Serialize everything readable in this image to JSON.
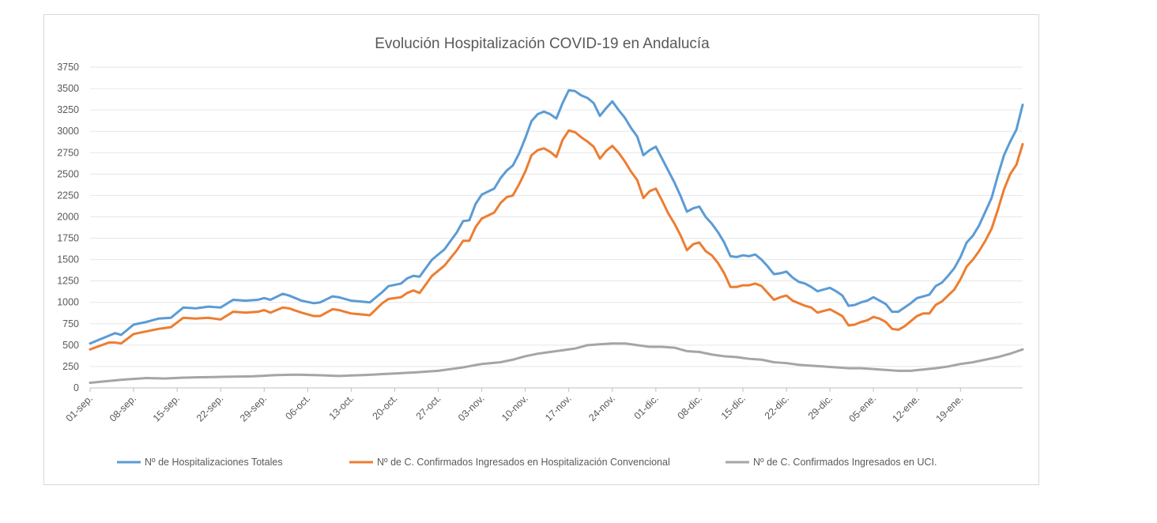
{
  "chart_data": {
    "type": "line",
    "title": "Evolución Hospitalización COVID-19 en Andalucía",
    "xlabel": "",
    "ylabel": "",
    "ylim": [
      0,
      3750
    ],
    "yticks": [
      0,
      250,
      500,
      750,
      1000,
      1250,
      1500,
      1750,
      2000,
      2250,
      2500,
      2750,
      3000,
      3250,
      3500,
      3750
    ],
    "x_tick_labels": [
      "01-sep.",
      "08-sep.",
      "15-sep.",
      "22-sep.",
      "29-sep.",
      "06-oct.",
      "13-oct.",
      "20-oct.",
      "27-oct.",
      "03-nov.",
      "10-nov.",
      "17-nov.",
      "24-nov.",
      "01-dic.",
      "08-dic.",
      "15-dic.",
      "22-dic.",
      "29-dic.",
      "05-ene.",
      "12-ene.",
      "19-ene."
    ],
    "legend_position": "bottom",
    "grid": true,
    "series": [
      {
        "name": "Nº de Hospitalizaciones Totales",
        "color": "#5b9bd5",
        "anchors": [
          [
            0,
            520
          ],
          [
            3,
            610
          ],
          [
            4,
            640
          ],
          [
            5,
            620
          ],
          [
            7,
            740
          ],
          [
            9,
            770
          ],
          [
            11,
            810
          ],
          [
            13,
            820
          ],
          [
            15,
            940
          ],
          [
            17,
            930
          ],
          [
            19,
            950
          ],
          [
            21,
            940
          ],
          [
            23,
            1030
          ],
          [
            25,
            1020
          ],
          [
            27,
            1030
          ],
          [
            28,
            1050
          ],
          [
            29,
            1030
          ],
          [
            31,
            1100
          ],
          [
            32,
            1080
          ],
          [
            34,
            1020
          ],
          [
            36,
            990
          ],
          [
            37,
            1000
          ],
          [
            39,
            1070
          ],
          [
            40,
            1060
          ],
          [
            42,
            1020
          ],
          [
            45,
            1000
          ],
          [
            47,
            1120
          ],
          [
            48,
            1190
          ],
          [
            50,
            1220
          ],
          [
            51,
            1280
          ],
          [
            52,
            1310
          ],
          [
            53,
            1300
          ],
          [
            55,
            1500
          ],
          [
            57,
            1620
          ],
          [
            59,
            1820
          ],
          [
            60,
            1950
          ],
          [
            61,
            1960
          ],
          [
            62,
            2150
          ],
          [
            63,
            2260
          ],
          [
            65,
            2330
          ],
          [
            66,
            2450
          ],
          [
            67,
            2540
          ],
          [
            68,
            2600
          ],
          [
            69,
            2740
          ],
          [
            70,
            2920
          ],
          [
            71,
            3120
          ],
          [
            72,
            3200
          ],
          [
            73,
            3230
          ],
          [
            74,
            3200
          ],
          [
            75,
            3150
          ],
          [
            76,
            3330
          ],
          [
            77,
            3480
          ],
          [
            78,
            3470
          ],
          [
            79,
            3420
          ],
          [
            80,
            3390
          ],
          [
            81,
            3330
          ],
          [
            82,
            3180
          ],
          [
            83,
            3270
          ],
          [
            84,
            3350
          ],
          [
            85,
            3250
          ],
          [
            86,
            3160
          ],
          [
            87,
            3040
          ],
          [
            88,
            2940
          ],
          [
            89,
            2720
          ],
          [
            90,
            2780
          ],
          [
            91,
            2820
          ],
          [
            92,
            2680
          ],
          [
            93,
            2540
          ],
          [
            94,
            2400
          ],
          [
            95,
            2240
          ],
          [
            96,
            2060
          ],
          [
            97,
            2100
          ],
          [
            98,
            2120
          ],
          [
            99,
            2000
          ],
          [
            100,
            1920
          ],
          [
            101,
            1820
          ],
          [
            102,
            1700
          ],
          [
            103,
            1540
          ],
          [
            104,
            1530
          ],
          [
            105,
            1550
          ],
          [
            106,
            1540
          ],
          [
            107,
            1560
          ],
          [
            108,
            1500
          ],
          [
            109,
            1420
          ],
          [
            110,
            1330
          ],
          [
            111,
            1340
          ],
          [
            112,
            1360
          ],
          [
            113,
            1290
          ],
          [
            114,
            1240
          ],
          [
            115,
            1220
          ],
          [
            116,
            1180
          ],
          [
            117,
            1130
          ],
          [
            118,
            1150
          ],
          [
            119,
            1170
          ],
          [
            120,
            1130
          ],
          [
            121,
            1080
          ],
          [
            122,
            960
          ],
          [
            123,
            970
          ],
          [
            124,
            1000
          ],
          [
            125,
            1020
          ],
          [
            126,
            1060
          ],
          [
            127,
            1020
          ],
          [
            128,
            980
          ],
          [
            129,
            890
          ],
          [
            130,
            890
          ],
          [
            131,
            940
          ],
          [
            132,
            990
          ],
          [
            133,
            1050
          ],
          [
            134,
            1070
          ],
          [
            135,
            1090
          ],
          [
            136,
            1190
          ],
          [
            137,
            1230
          ],
          [
            138,
            1310
          ],
          [
            139,
            1400
          ],
          [
            140,
            1530
          ],
          [
            141,
            1700
          ],
          [
            142,
            1780
          ],
          [
            143,
            1900
          ],
          [
            144,
            2060
          ],
          [
            145,
            2220
          ],
          [
            146,
            2480
          ],
          [
            147,
            2720
          ],
          [
            148,
            2880
          ],
          [
            149,
            3020
          ],
          [
            150,
            3310
          ]
        ]
      },
      {
        "name": "Nº de C. Confirmados Ingresados en Hospitalización Convencional",
        "color": "#ed7d31",
        "anchors": [
          [
            0,
            450
          ],
          [
            3,
            530
          ],
          [
            4,
            530
          ],
          [
            5,
            520
          ],
          [
            7,
            630
          ],
          [
            9,
            660
          ],
          [
            11,
            690
          ],
          [
            13,
            710
          ],
          [
            15,
            820
          ],
          [
            17,
            810
          ],
          [
            19,
            820
          ],
          [
            21,
            800
          ],
          [
            23,
            890
          ],
          [
            25,
            880
          ],
          [
            27,
            890
          ],
          [
            28,
            910
          ],
          [
            29,
            880
          ],
          [
            31,
            940
          ],
          [
            32,
            930
          ],
          [
            34,
            880
          ],
          [
            36,
            840
          ],
          [
            37,
            840
          ],
          [
            39,
            920
          ],
          [
            40,
            910
          ],
          [
            42,
            870
          ],
          [
            45,
            850
          ],
          [
            47,
            990
          ],
          [
            48,
            1040
          ],
          [
            50,
            1060
          ],
          [
            51,
            1110
          ],
          [
            52,
            1140
          ],
          [
            53,
            1110
          ],
          [
            55,
            1310
          ],
          [
            57,
            1430
          ],
          [
            59,
            1610
          ],
          [
            60,
            1720
          ],
          [
            61,
            1720
          ],
          [
            62,
            1880
          ],
          [
            63,
            1980
          ],
          [
            65,
            2050
          ],
          [
            66,
            2160
          ],
          [
            67,
            2230
          ],
          [
            68,
            2250
          ],
          [
            69,
            2380
          ],
          [
            70,
            2530
          ],
          [
            71,
            2720
          ],
          [
            72,
            2780
          ],
          [
            73,
            2800
          ],
          [
            74,
            2760
          ],
          [
            75,
            2700
          ],
          [
            76,
            2900
          ],
          [
            77,
            3010
          ],
          [
            78,
            2990
          ],
          [
            79,
            2930
          ],
          [
            80,
            2880
          ],
          [
            81,
            2820
          ],
          [
            82,
            2680
          ],
          [
            83,
            2770
          ],
          [
            84,
            2830
          ],
          [
            85,
            2750
          ],
          [
            86,
            2650
          ],
          [
            87,
            2530
          ],
          [
            88,
            2430
          ],
          [
            89,
            2220
          ],
          [
            90,
            2300
          ],
          [
            91,
            2330
          ],
          [
            92,
            2190
          ],
          [
            93,
            2040
          ],
          [
            94,
            1920
          ],
          [
            95,
            1780
          ],
          [
            96,
            1610
          ],
          [
            97,
            1680
          ],
          [
            98,
            1700
          ],
          [
            99,
            1600
          ],
          [
            100,
            1550
          ],
          [
            101,
            1460
          ],
          [
            102,
            1340
          ],
          [
            103,
            1180
          ],
          [
            104,
            1180
          ],
          [
            105,
            1200
          ],
          [
            106,
            1200
          ],
          [
            107,
            1220
          ],
          [
            108,
            1190
          ],
          [
            109,
            1110
          ],
          [
            110,
            1030
          ],
          [
            111,
            1060
          ],
          [
            112,
            1080
          ],
          [
            113,
            1020
          ],
          [
            114,
            990
          ],
          [
            115,
            960
          ],
          [
            116,
            940
          ],
          [
            117,
            880
          ],
          [
            118,
            900
          ],
          [
            119,
            920
          ],
          [
            120,
            880
          ],
          [
            121,
            840
          ],
          [
            122,
            730
          ],
          [
            123,
            740
          ],
          [
            124,
            770
          ],
          [
            125,
            790
          ],
          [
            126,
            830
          ],
          [
            127,
            810
          ],
          [
            128,
            770
          ],
          [
            129,
            690
          ],
          [
            130,
            680
          ],
          [
            131,
            720
          ],
          [
            132,
            780
          ],
          [
            133,
            840
          ],
          [
            134,
            870
          ],
          [
            135,
            870
          ],
          [
            136,
            970
          ],
          [
            137,
            1010
          ],
          [
            138,
            1080
          ],
          [
            139,
            1150
          ],
          [
            140,
            1270
          ],
          [
            141,
            1420
          ],
          [
            142,
            1500
          ],
          [
            143,
            1600
          ],
          [
            144,
            1720
          ],
          [
            145,
            1860
          ],
          [
            146,
            2080
          ],
          [
            147,
            2320
          ],
          [
            148,
            2500
          ],
          [
            149,
            2610
          ],
          [
            150,
            2850
          ]
        ]
      },
      {
        "name": "Nº de C. Confirmados Ingresados en UCI.",
        "color": "#a5a5a5",
        "anchors": [
          [
            0,
            60
          ],
          [
            5,
            95
          ],
          [
            9,
            115
          ],
          [
            12,
            110
          ],
          [
            15,
            120
          ],
          [
            18,
            125
          ],
          [
            22,
            130
          ],
          [
            26,
            135
          ],
          [
            30,
            150
          ],
          [
            33,
            155
          ],
          [
            36,
            150
          ],
          [
            40,
            140
          ],
          [
            44,
            150
          ],
          [
            48,
            165
          ],
          [
            52,
            180
          ],
          [
            56,
            200
          ],
          [
            60,
            240
          ],
          [
            63,
            280
          ],
          [
            66,
            300
          ],
          [
            68,
            330
          ],
          [
            70,
            370
          ],
          [
            72,
            400
          ],
          [
            74,
            420
          ],
          [
            76,
            440
          ],
          [
            78,
            460
          ],
          [
            80,
            500
          ],
          [
            82,
            510
          ],
          [
            84,
            520
          ],
          [
            86,
            520
          ],
          [
            88,
            500
          ],
          [
            90,
            480
          ],
          [
            92,
            480
          ],
          [
            94,
            470
          ],
          [
            96,
            430
          ],
          [
            98,
            420
          ],
          [
            100,
            390
          ],
          [
            102,
            370
          ],
          [
            104,
            360
          ],
          [
            106,
            340
          ],
          [
            108,
            330
          ],
          [
            110,
            300
          ],
          [
            112,
            290
          ],
          [
            114,
            270
          ],
          [
            116,
            260
          ],
          [
            118,
            250
          ],
          [
            120,
            240
          ],
          [
            122,
            230
          ],
          [
            124,
            230
          ],
          [
            126,
            220
          ],
          [
            128,
            210
          ],
          [
            130,
            200
          ],
          [
            132,
            200
          ],
          [
            134,
            215
          ],
          [
            136,
            230
          ],
          [
            138,
            250
          ],
          [
            140,
            280
          ],
          [
            142,
            300
          ],
          [
            144,
            330
          ],
          [
            146,
            360
          ],
          [
            148,
            400
          ],
          [
            150,
            450
          ]
        ]
      }
    ]
  }
}
